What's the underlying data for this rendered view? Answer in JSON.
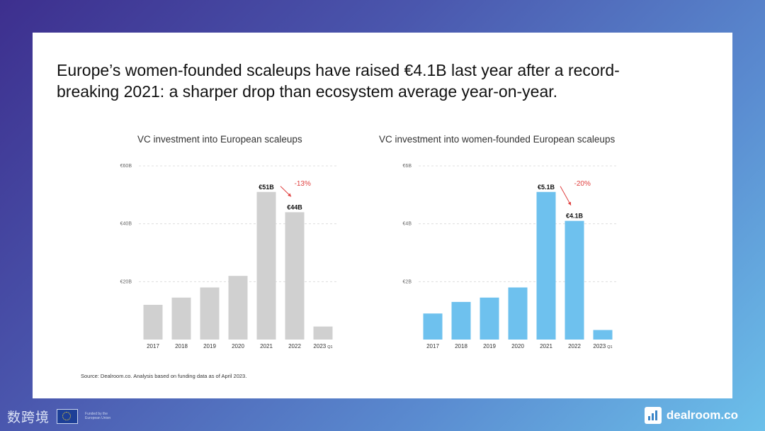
{
  "headline": {
    "line1": "Europe’s women-founded scaleups have raised €4.1B last year after a record-",
    "line2": "breaking 2021: a sharper drop than ecosystem average year-on-year."
  },
  "source_note": "Source: Dealroom.co. Analysis based on funding data as of April 2023.",
  "footer": {
    "watermark": "数跨境",
    "eu_text": "Funded by the European Union",
    "brand_name": "dealroom.co",
    "brand_icon": "dealroom-bars-icon",
    "eu_flag_icon": "eu-flag-icon"
  },
  "colors": {
    "left_bars": "#d0d0d0",
    "right_bars": "#6ec1ee",
    "delta": "#e0403f"
  },
  "chart_data": [
    {
      "type": "bar",
      "title": "VC investment into European scaleups",
      "categories": [
        "2017",
        "2018",
        "2019",
        "2020",
        "2021",
        "2022",
        "2023"
      ],
      "category_suffix": [
        "",
        "",
        "",
        "",
        "",
        "",
        "Q1"
      ],
      "values": [
        12,
        14.5,
        18,
        22,
        51,
        44,
        4.5
      ],
      "value_labels": [
        "",
        "",
        "",
        "",
        "€51B",
        "€44B",
        ""
      ],
      "yticks": [
        "€60B",
        "€40B",
        "€20B"
      ],
      "ytick_values": [
        60,
        40,
        20
      ],
      "ylim": [
        0,
        60
      ],
      "change_label": "-13%",
      "grid": true
    },
    {
      "type": "bar",
      "title": "VC investment into women-founded European scaleups",
      "categories": [
        "2017",
        "2018",
        "2019",
        "2020",
        "2021",
        "2022",
        "2023"
      ],
      "category_suffix": [
        "",
        "",
        "",
        "",
        "",
        "",
        "Q1"
      ],
      "values": [
        0.9,
        1.3,
        1.45,
        1.8,
        5.1,
        4.1,
        0.33
      ],
      "value_labels": [
        "",
        "",
        "",
        "",
        "€5.1B",
        "€4.1B",
        ""
      ],
      "yticks": [
        "€6B",
        "€4B",
        "€2B"
      ],
      "ytick_values": [
        6,
        4,
        2
      ],
      "ylim": [
        0,
        6
      ],
      "change_label": "-20%",
      "grid": true
    }
  ]
}
